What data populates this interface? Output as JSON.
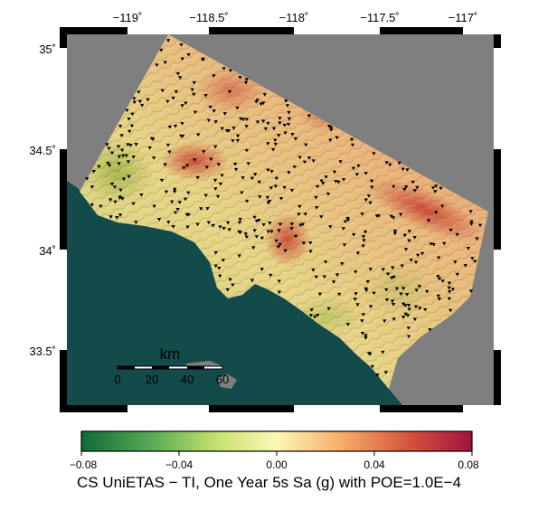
{
  "map": {
    "lon_ticks": [
      "−119˚",
      "−118.5˚",
      "−118˚",
      "−117.5˚",
      "−117˚"
    ],
    "lat_ticks": [
      "35˚",
      "34.5˚",
      "34˚",
      "33.5˚"
    ],
    "colors": {
      "land_no_data": "#7f7f7f",
      "ocean": "#134a4a",
      "station_marker": "#000000"
    },
    "scale_bar": {
      "unit": "km",
      "ticks": [
        "0",
        "20",
        "40",
        "60"
      ]
    }
  },
  "colorbar": {
    "tick_labels": [
      "−0.08",
      "−0.04",
      "0.00",
      "0.04",
      "0.08"
    ],
    "title": "CS UniETAS − TI, One Year 5s Sa (g) with POE=1.0E−4",
    "colors": [
      "#0f6b3a",
      "#59aa55",
      "#c7e36e",
      "#fdf7b8",
      "#f6b06b",
      "#d6523c",
      "#a0133e"
    ]
  }
}
